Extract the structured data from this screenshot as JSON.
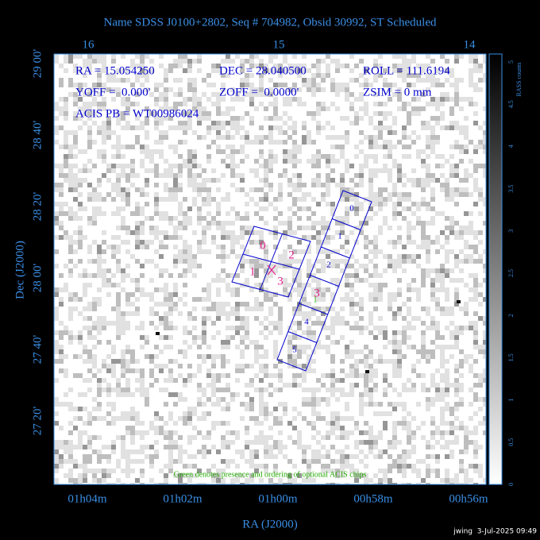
{
  "header": {
    "title": "Name SDSS J0100+2802, Seq # 704982, Obsid 30992, ST Scheduled"
  },
  "axes": {
    "top_labels": [
      "16",
      "15",
      "14"
    ],
    "left_labels": [
      "29 00'",
      "28 40'",
      "28 20'",
      "28 00'",
      "27 40'",
      "27 20'"
    ],
    "bottom_labels": [
      "01h04m",
      "01h02m",
      "01h00m",
      "00h58m",
      "00h56m"
    ],
    "xlabel": "RA (J2000)",
    "ylabel": "Dec (J2000)"
  },
  "colorbar": {
    "label": "RASS counts",
    "ticks": [
      "0",
      "0.5",
      "1",
      "1.5",
      "2",
      "2.5",
      "3",
      "3.5",
      "4",
      "4.5",
      "5"
    ]
  },
  "info": [
    "RA = 15.054250",
    "DEC = 28.040500",
    "ROLL = 111.6194",
    "YOFF =  0.000'",
    "ZOFF =  0.0000'",
    "ZSIM = 0 mm",
    "ACIS PB = WT00986024"
  ],
  "acis_i": [
    "0",
    "2",
    "1",
    "3"
  ],
  "acis_s": [
    "0",
    "1",
    "2",
    "3",
    "4",
    "5"
  ],
  "optional_chip": "1",
  "note": "Green denotes presence and ordering of optional ACIS chips",
  "stamp": "jwing  3-Jul-2025 09:49"
}
